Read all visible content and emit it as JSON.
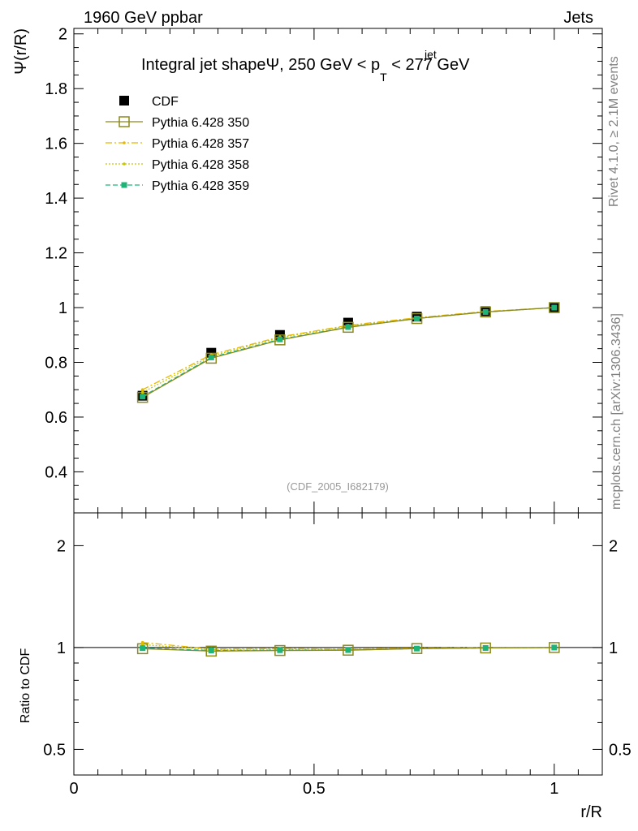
{
  "header": {
    "left": "1960 GeV ppbar",
    "right": "Jets",
    "title_main": "Integral jet shapeΨ, 250 GeV < p",
    "title_sup": "jet",
    "title_sub": "T",
    "title_end": " < 277 GeV",
    "side_rivet": "Rivet 4.1.0, ≥ 2.1M events",
    "side_mcplots": "mcplots.cern.ch [arXiv:1306.3436]",
    "analysis_id": "(CDF_2005_I682179)"
  },
  "colors": {
    "cdf": "#000000",
    "p350": "#8a8a1e",
    "p357": "#e6b800",
    "p358": "#c8c800",
    "p359": "#1eb478"
  },
  "chart_data": [
    {
      "type": "line",
      "panel": "main",
      "ylabel": "Ψ(r/R)",
      "xlim": [
        0,
        1.1
      ],
      "ylim": [
        0.25,
        2.02
      ],
      "yticks": [
        "0.4",
        "0.6",
        "0.8",
        "1",
        "1.2",
        "1.4",
        "1.6",
        "1.8",
        "2"
      ],
      "x": [
        0.143,
        0.286,
        0.429,
        0.571,
        0.714,
        0.857,
        1.0
      ],
      "series": [
        {
          "name": "CDF",
          "style": "marker",
          "values": [
            0.678,
            0.835,
            0.9,
            0.945,
            0.967,
            0.987,
            1.0
          ]
        },
        {
          "name": "Pythia 6.428 350",
          "style": "solid-open-square",
          "values": [
            0.672,
            0.815,
            0.882,
            0.928,
            0.96,
            0.984,
            1.0
          ]
        },
        {
          "name": "Pythia 6.428 357",
          "style": "dashdot",
          "values": [
            0.7,
            0.828,
            0.893,
            0.935,
            0.963,
            0.986,
            1.0
          ]
        },
        {
          "name": "Pythia 6.428 358",
          "style": "dotted",
          "values": [
            0.69,
            0.823,
            0.89,
            0.933,
            0.962,
            0.985,
            1.0
          ]
        },
        {
          "name": "Pythia 6.428 359",
          "style": "dashed",
          "values": [
            0.675,
            0.818,
            0.884,
            0.929,
            0.96,
            0.984,
            1.0
          ]
        }
      ],
      "legend": "top-left"
    },
    {
      "type": "line",
      "panel": "ratio",
      "ylabel": "Ratio to CDF",
      "xlabel": "r/R",
      "xlim": [
        0,
        1.1
      ],
      "ylim": [
        0.42,
        2.5
      ],
      "yticks": [
        "0.5",
        "1",
        "2"
      ],
      "xticks": [
        "0",
        "0.5",
        "1"
      ],
      "x": [
        0.143,
        0.286,
        0.429,
        0.571,
        0.714,
        0.857,
        1.0
      ],
      "series": [
        {
          "name": "Pythia 6.428 350",
          "values": [
            0.992,
            0.976,
            0.98,
            0.982,
            0.993,
            0.997,
            1.0
          ]
        },
        {
          "name": "Pythia 6.428 357",
          "values": [
            1.035,
            0.99,
            0.993,
            0.99,
            0.996,
            0.999,
            1.0
          ]
        },
        {
          "name": "Pythia 6.428 358",
          "values": [
            1.02,
            0.986,
            0.99,
            0.988,
            0.995,
            0.998,
            1.0
          ]
        },
        {
          "name": "Pythia 6.428 359",
          "values": [
            0.996,
            0.98,
            0.982,
            0.983,
            0.993,
            0.997,
            1.0
          ]
        }
      ]
    }
  ]
}
